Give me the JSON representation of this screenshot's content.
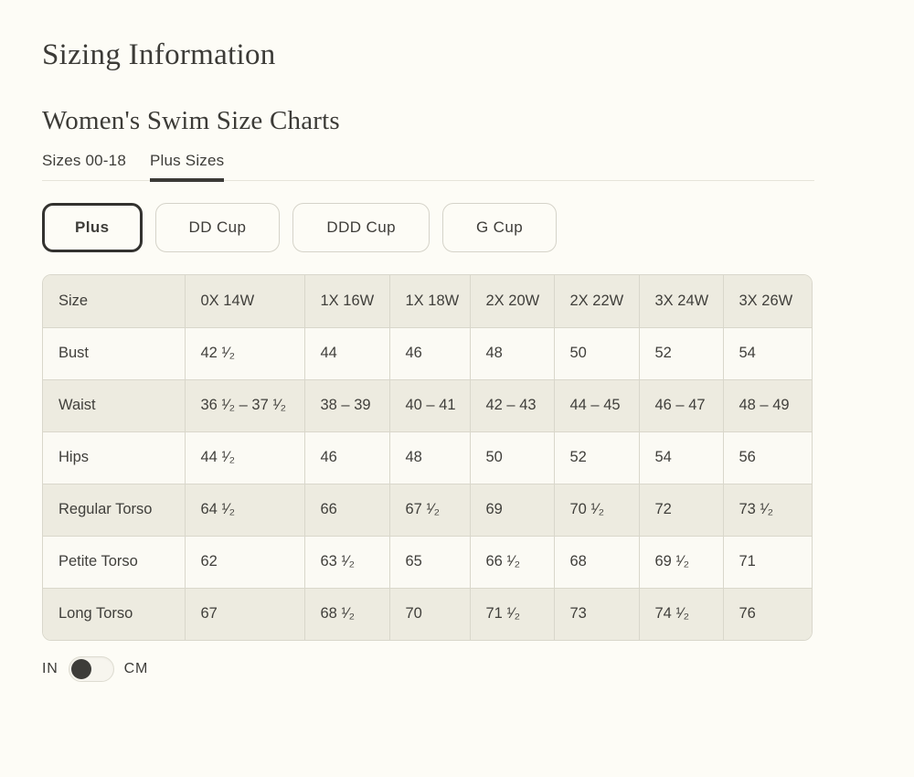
{
  "page": {
    "title": "Sizing Information",
    "subtitle": "Women's Swim Size Charts"
  },
  "tabs": [
    {
      "label": "Sizes 00-18",
      "active": false
    },
    {
      "label": "Plus Sizes",
      "active": true
    }
  ],
  "filters": [
    {
      "label": "Plus",
      "active": true
    },
    {
      "label": "DD Cup",
      "active": false
    },
    {
      "label": "DDD Cup",
      "active": false
    },
    {
      "label": "G Cup",
      "active": false
    }
  ],
  "size_chart": {
    "columns": [
      "Size",
      "0X 14W",
      "1X 16W",
      "1X 18W",
      "2X 20W",
      "2X 22W",
      "3X 24W",
      "3X 26W"
    ],
    "rows": [
      {
        "label": "Bust",
        "values": [
          "42 ¹⁄₂",
          "44",
          "46",
          "48",
          "50",
          "52",
          "54"
        ]
      },
      {
        "label": "Waist",
        "values": [
          "36 ¹⁄₂ – 37 ¹⁄₂",
          "38 – 39",
          "40 – 41",
          "42 – 43",
          "44 – 45",
          "46 – 47",
          "48 – 49"
        ]
      },
      {
        "label": "Hips",
        "values": [
          "44 ¹⁄₂",
          "46",
          "48",
          "50",
          "52",
          "54",
          "56"
        ]
      },
      {
        "label": "Regular Torso",
        "values": [
          "64 ¹⁄₂",
          "66",
          "67 ¹⁄₂",
          "69",
          "70 ¹⁄₂",
          "72",
          "73 ¹⁄₂"
        ]
      },
      {
        "label": "Petite Torso",
        "values": [
          "62",
          "63 ¹⁄₂",
          "65",
          "66 ¹⁄₂",
          "68",
          "69 ¹⁄₂",
          "71"
        ]
      },
      {
        "label": "Long Torso",
        "values": [
          "67",
          "68 ¹⁄₂",
          "70",
          "71 ¹⁄₂",
          "73",
          "74 ¹⁄₂",
          "76"
        ]
      }
    ]
  },
  "unit_toggle": {
    "label_left": "IN",
    "label_right": "CM",
    "selected": "IN"
  },
  "colors": {
    "bg": "#fdfcf6",
    "text": "#3e3d39",
    "beige": "#edebe0",
    "rowlight": "#fbfaf4",
    "border": "#d9d7cb",
    "hr": "#e6e4da",
    "btn-border": "#d5d3c9"
  }
}
